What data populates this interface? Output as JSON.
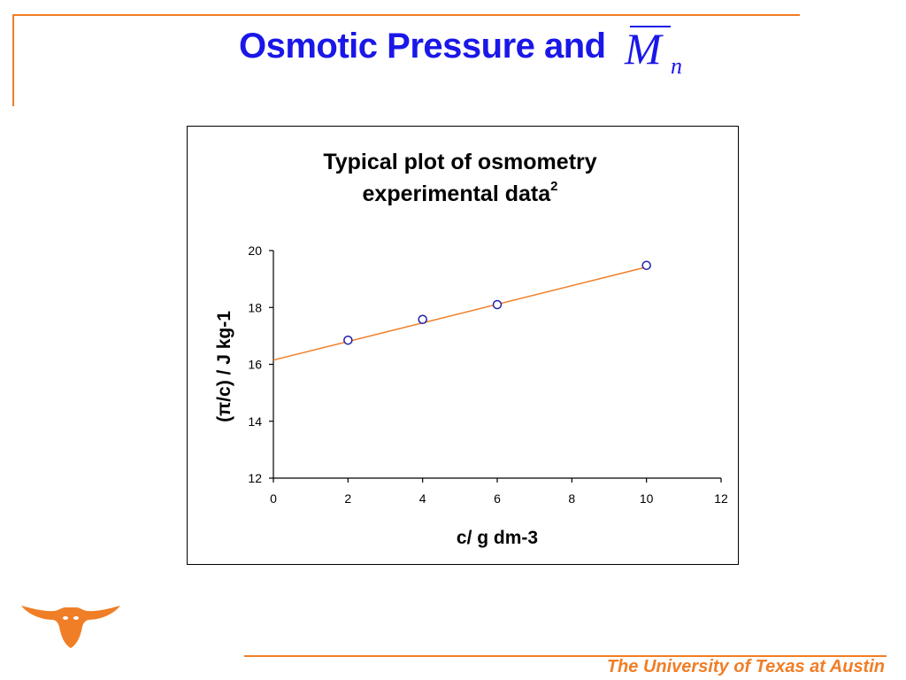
{
  "slide": {
    "title": "Osmotic Pressure and",
    "symbol_main": "M",
    "symbol_sub": "n",
    "footer": "The University of Texas at Austin"
  },
  "colors": {
    "title": "#1a17e8",
    "accent": "#f07e26",
    "marker": "#1f1fa6",
    "trendline": "#f07e26"
  },
  "icons": {
    "logo": "longhorn-logo"
  },
  "chart_data": {
    "type": "scatter",
    "title": "Typical plot of osmometry experimental data",
    "title_line1": "Typical plot of osmometry",
    "title_line2": "experimental data",
    "title_superscript": "2",
    "xlabel": "c/ g dm-3",
    "ylabel": "(π/c) / J kg-1",
    "xlim": [
      0,
      12
    ],
    "ylim": [
      12,
      20
    ],
    "x_ticks": [
      0,
      2,
      4,
      6,
      8,
      10,
      12
    ],
    "y_ticks": [
      12,
      14,
      16,
      18,
      20
    ],
    "grid": false,
    "legend": "none",
    "series": [
      {
        "x": [
          2,
          4,
          6,
          10
        ],
        "y": [
          16.85,
          17.58,
          18.1,
          19.48
        ],
        "marker": "open-circle"
      }
    ],
    "trendline": {
      "type": "linear",
      "x": [
        0,
        10
      ],
      "y": [
        16.15,
        19.42
      ]
    }
  }
}
